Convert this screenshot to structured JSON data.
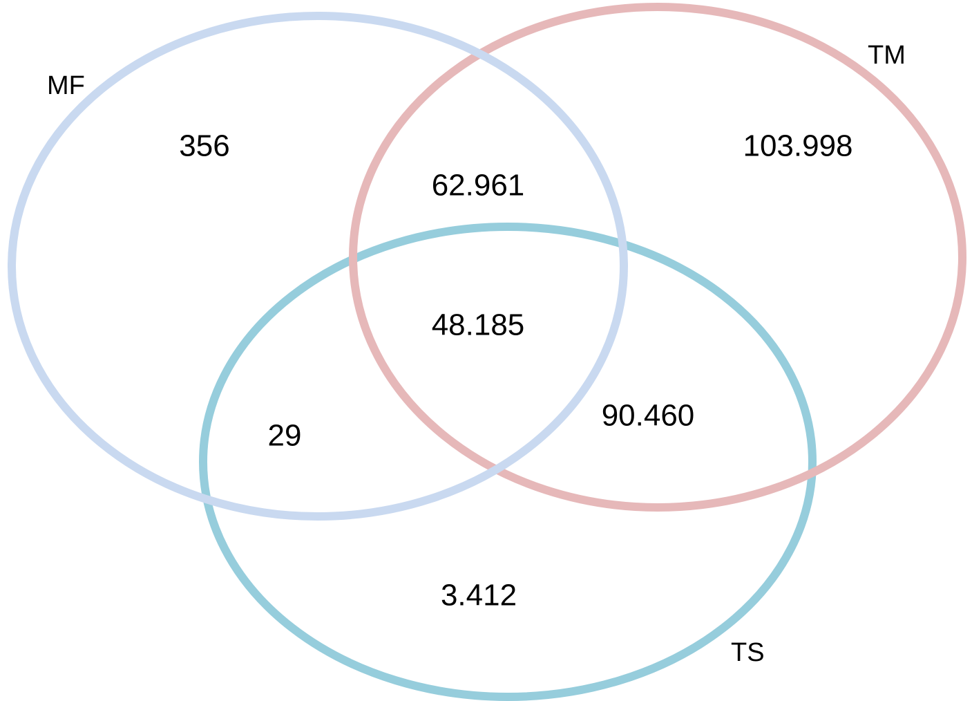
{
  "sets": [
    {
      "label": "MF"
    },
    {
      "label": "TM"
    },
    {
      "label": "TS"
    }
  ],
  "regions": [
    {
      "label": "356"
    },
    {
      "label": "62.961"
    },
    {
      "label": "103.998"
    },
    {
      "label": "48.185"
    },
    {
      "label": "29"
    },
    {
      "label": "90.460"
    },
    {
      "label": "3.412"
    }
  ]
}
